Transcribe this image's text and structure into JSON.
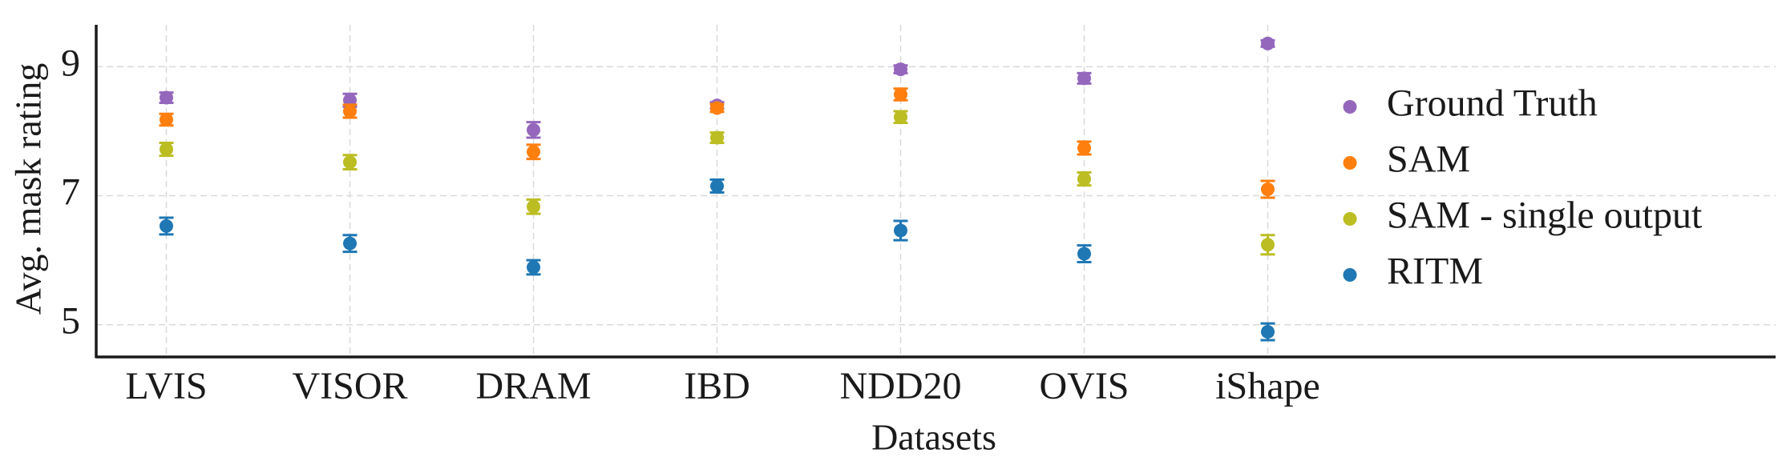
{
  "chart_data": {
    "type": "errorbar",
    "x_label": "Datasets",
    "y_label": "Avg. mask rating",
    "categories": [
      "LVIS",
      "VISOR",
      "DRAM",
      "IBD",
      "NDD20",
      "OVIS",
      "iShape"
    ],
    "ylim": [
      4.5,
      9.65
    ],
    "yticks": [
      5,
      7,
      9
    ],
    "grid": true,
    "legend": "center right",
    "series": [
      {
        "name": "Ground Truth",
        "color": "#9467bd",
        "values": [
          8.52,
          8.48,
          8.02,
          8.4,
          8.96,
          8.82,
          9.36
        ],
        "errors": [
          0.08,
          0.1,
          0.12,
          0.05,
          0.06,
          0.08,
          0.05
        ]
      },
      {
        "name": "SAM",
        "color": "#ff7f0e",
        "values": [
          8.18,
          8.31,
          7.68,
          8.36,
          8.57,
          7.74,
          7.1
        ],
        "errors": [
          0.09,
          0.1,
          0.11,
          0.06,
          0.09,
          0.1,
          0.13
        ]
      },
      {
        "name": "SAM - single output",
        "color": "#bcbd22",
        "values": [
          7.72,
          7.52,
          6.83,
          7.9,
          8.22,
          7.26,
          6.24
        ],
        "errors": [
          0.1,
          0.11,
          0.11,
          0.08,
          0.09,
          0.1,
          0.15
        ]
      },
      {
        "name": "RITM",
        "color": "#1f77b4",
        "values": [
          6.53,
          6.26,
          5.89,
          7.15,
          6.46,
          6.1,
          4.89
        ],
        "errors": [
          0.13,
          0.13,
          0.11,
          0.1,
          0.15,
          0.13,
          0.13
        ]
      }
    ]
  }
}
